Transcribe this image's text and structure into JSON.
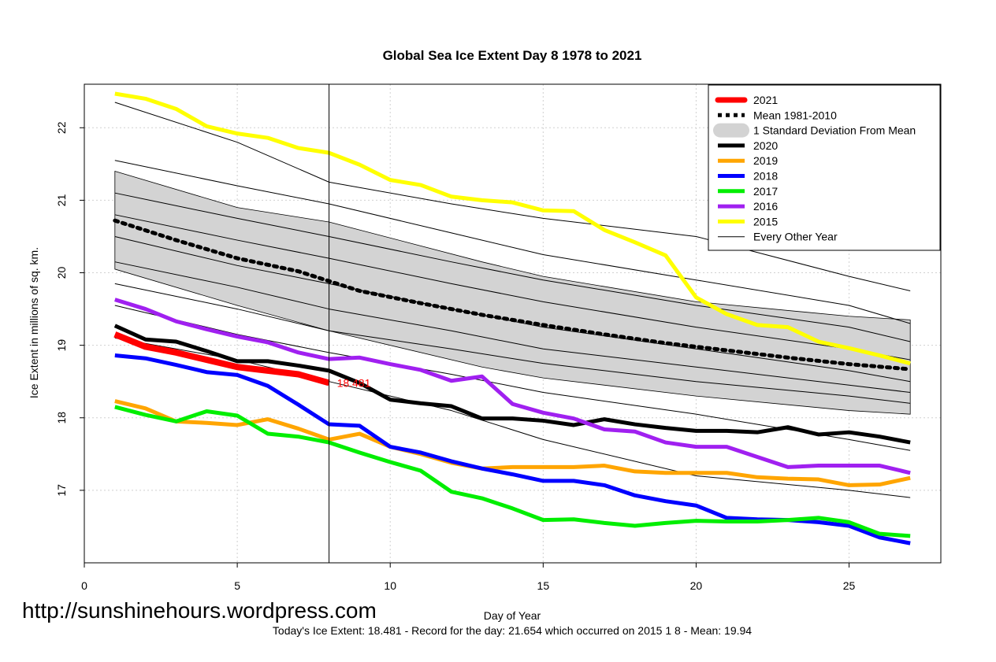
{
  "chart_data": {
    "type": "line",
    "title": "Global Sea Ice Extent Day 8 1978 to 2021",
    "xlabel": "Day of Year",
    "ylabel": "Ice Extent in millions of sq. km.",
    "xlim": [
      0,
      28
    ],
    "ylim": [
      16,
      22.6
    ],
    "xticks": [
      0,
      5,
      10,
      15,
      20,
      25
    ],
    "yticks": [
      17,
      18,
      19,
      20,
      21,
      22
    ],
    "grid": true,
    "legend_position": "top-right",
    "current_day": 8,
    "current_value_label": "18.481",
    "mean_band": {
      "name": "1 Standard Deviation From Mean",
      "x": [
        1,
        5,
        8,
        13,
        15,
        20,
        25,
        27
      ],
      "upper": [
        21.4,
        20.9,
        20.7,
        20.15,
        19.95,
        19.6,
        19.4,
        19.35
      ],
      "lower": [
        20.05,
        19.55,
        19.2,
        18.7,
        18.55,
        18.3,
        18.1,
        18.05
      ]
    },
    "series": [
      {
        "name": "2021",
        "color": "#ff0000",
        "width": 8,
        "x": [
          1,
          2,
          3,
          4,
          5,
          6,
          7,
          8
        ],
        "values": [
          19.15,
          18.98,
          18.9,
          18.8,
          18.7,
          18.65,
          18.6,
          18.481
        ]
      },
      {
        "name": "Mean 1981-2010",
        "color": "#000000",
        "width": 5,
        "dash": "dotted",
        "x": [
          1,
          3,
          5,
          7,
          9,
          11,
          13,
          15,
          17,
          19,
          21,
          23,
          25,
          27
        ],
        "values": [
          20.72,
          20.45,
          20.2,
          20.02,
          19.75,
          19.58,
          19.42,
          19.28,
          19.15,
          19.03,
          18.93,
          18.83,
          18.74,
          18.67
        ]
      },
      {
        "name": "2020",
        "color": "#000000",
        "width": 5,
        "x": [
          1,
          2,
          3,
          4,
          5,
          6,
          7,
          8,
          9,
          10,
          11,
          12,
          13,
          14,
          15,
          16,
          17,
          18,
          19,
          20,
          21,
          22,
          23,
          24,
          25,
          26,
          27
        ],
        "values": [
          19.27,
          19.08,
          19.05,
          18.92,
          18.78,
          18.78,
          18.72,
          18.65,
          18.48,
          18.25,
          18.2,
          18.16,
          17.99,
          17.99,
          17.96,
          17.9,
          17.98,
          17.91,
          17.86,
          17.82,
          17.82,
          17.8,
          17.87,
          17.77,
          17.8,
          17.74,
          17.66
        ]
      },
      {
        "name": "2019",
        "color": "#ffa500",
        "width": 5,
        "x": [
          1,
          2,
          3,
          4,
          5,
          6,
          7,
          8,
          9,
          10,
          11,
          12,
          13,
          14,
          15,
          16,
          17,
          18,
          19,
          20,
          21,
          22,
          23,
          24,
          25,
          26,
          27
        ],
        "values": [
          18.23,
          18.13,
          17.95,
          17.93,
          17.9,
          17.98,
          17.85,
          17.7,
          17.78,
          17.6,
          17.5,
          17.38,
          17.3,
          17.32,
          17.32,
          17.32,
          17.34,
          17.26,
          17.24,
          17.24,
          17.24,
          17.18,
          17.16,
          17.15,
          17.07,
          17.08,
          17.17
        ]
      },
      {
        "name": "2018",
        "color": "#0000ff",
        "width": 5,
        "x": [
          1,
          2,
          3,
          4,
          5,
          6,
          7,
          8,
          9,
          10,
          11,
          12,
          13,
          14,
          15,
          16,
          17,
          18,
          19,
          20,
          21,
          22,
          23,
          24,
          25,
          26,
          27
        ],
        "values": [
          18.86,
          18.82,
          18.73,
          18.63,
          18.59,
          18.44,
          18.18,
          17.91,
          17.89,
          17.6,
          17.52,
          17.4,
          17.3,
          17.22,
          17.13,
          17.13,
          17.07,
          16.93,
          16.85,
          16.79,
          16.62,
          16.6,
          16.59,
          16.56,
          16.51,
          16.35,
          16.27
        ]
      },
      {
        "name": "2017",
        "color": "#00ee00",
        "width": 5,
        "x": [
          1,
          2,
          3,
          4,
          5,
          6,
          7,
          8,
          9,
          10,
          11,
          12,
          13,
          14,
          15,
          16,
          17,
          18,
          19,
          20,
          21,
          22,
          23,
          24,
          25,
          26,
          27
        ],
        "values": [
          18.15,
          18.04,
          17.95,
          18.09,
          18.03,
          17.78,
          17.74,
          17.66,
          17.52,
          17.39,
          17.27,
          16.98,
          16.89,
          16.75,
          16.59,
          16.6,
          16.55,
          16.51,
          16.55,
          16.58,
          16.57,
          16.57,
          16.59,
          16.62,
          16.56,
          16.4,
          16.37
        ]
      },
      {
        "name": "2016",
        "color": "#a020f0",
        "width": 5,
        "x": [
          1,
          2,
          3,
          4,
          5,
          6,
          7,
          8,
          9,
          10,
          11,
          12,
          13,
          14,
          15,
          16,
          17,
          18,
          19,
          20,
          21,
          22,
          23,
          24,
          25,
          26,
          27
        ],
        "values": [
          19.63,
          19.5,
          19.33,
          19.22,
          19.12,
          19.04,
          18.9,
          18.81,
          18.83,
          18.74,
          18.66,
          18.51,
          18.57,
          18.19,
          18.07,
          17.99,
          17.84,
          17.81,
          17.66,
          17.6,
          17.6,
          17.46,
          17.32,
          17.34,
          17.34,
          17.34,
          17.24
        ]
      },
      {
        "name": "2015",
        "color": "#ffff00",
        "width": 5,
        "x": [
          1,
          2,
          3,
          4,
          5,
          6,
          7,
          8,
          9,
          10,
          11,
          12,
          13,
          14,
          15,
          16,
          17,
          18,
          19,
          20,
          21,
          22,
          23,
          24,
          25,
          26,
          27
        ],
        "values": [
          22.47,
          22.4,
          22.26,
          22.02,
          21.92,
          21.86,
          21.72,
          21.654,
          21.49,
          21.28,
          21.21,
          21.05,
          21.0,
          20.97,
          20.86,
          20.85,
          20.59,
          20.42,
          20.24,
          19.66,
          19.43,
          19.28,
          19.25,
          19.05,
          18.96,
          18.86,
          18.75
        ]
      },
      {
        "name": "Every Other Year",
        "color": "#000000",
        "width": 1,
        "x": [
          1,
          5,
          8,
          12,
          15,
          20,
          25,
          27
        ],
        "values": [
          22.35,
          21.8,
          21.25,
          20.95,
          20.75,
          20.5,
          19.95,
          19.75
        ]
      },
      {
        "name": "",
        "color": "#000000",
        "width": 1,
        "x": [
          1,
          5,
          8,
          12,
          15,
          20,
          25,
          27
        ],
        "values": [
          21.55,
          21.2,
          20.95,
          20.55,
          20.25,
          19.9,
          19.55,
          19.3
        ]
      },
      {
        "name": "",
        "color": "#000000",
        "width": 1,
        "x": [
          1,
          5,
          8,
          12,
          15,
          20,
          25,
          27
        ],
        "values": [
          21.1,
          20.75,
          20.5,
          20.15,
          19.9,
          19.55,
          19.25,
          19.05
        ]
      },
      {
        "name": "",
        "color": "#000000",
        "width": 1,
        "x": [
          1,
          5,
          8,
          12,
          15,
          20,
          25,
          27
        ],
        "values": [
          20.8,
          20.45,
          20.2,
          19.85,
          19.6,
          19.25,
          18.95,
          18.8
        ]
      },
      {
        "name": "",
        "color": "#000000",
        "width": 1,
        "x": [
          1,
          5,
          8,
          12,
          15,
          20,
          25,
          27
        ],
        "values": [
          20.5,
          20.1,
          19.85,
          19.5,
          19.25,
          18.95,
          18.65,
          18.5
        ]
      },
      {
        "name": "",
        "color": "#000000",
        "width": 1,
        "x": [
          1,
          5,
          8,
          12,
          15,
          20,
          25,
          27
        ],
        "values": [
          20.15,
          19.8,
          19.5,
          19.2,
          18.95,
          18.7,
          18.45,
          18.35
        ]
      },
      {
        "name": "",
        "color": "#000000",
        "width": 1,
        "x": [
          1,
          5,
          8,
          12,
          15,
          20,
          25,
          27
        ],
        "values": [
          19.85,
          19.5,
          19.2,
          18.95,
          18.75,
          18.5,
          18.3,
          18.2
        ]
      },
      {
        "name": "",
        "color": "#000000",
        "width": 1,
        "x": [
          1,
          5,
          8,
          12,
          15,
          20,
          25,
          27
        ],
        "values": [
          19.55,
          19.15,
          18.9,
          18.6,
          18.35,
          18.05,
          17.7,
          17.55
        ]
      },
      {
        "name": "",
        "color": "#000000",
        "width": 1,
        "x": [
          1,
          5,
          8,
          12,
          15,
          20,
          25,
          27
        ],
        "values": [
          19.1,
          18.8,
          18.5,
          18.1,
          17.7,
          17.2,
          17.0,
          16.9
        ]
      }
    ]
  },
  "legend": {
    "items": [
      {
        "label": "2021",
        "color": "#ff0000",
        "style": "thick"
      },
      {
        "label": "Mean 1981-2010",
        "color": "#000000",
        "style": "dotted"
      },
      {
        "label": "1 Standard Deviation From Mean",
        "color": "#d3d3d3",
        "style": "band"
      },
      {
        "label": "2020",
        "color": "#000000",
        "style": "solid"
      },
      {
        "label": "2019",
        "color": "#ffa500",
        "style": "solid"
      },
      {
        "label": "2018",
        "color": "#0000ff",
        "style": "solid"
      },
      {
        "label": "2017",
        "color": "#00ee00",
        "style": "solid"
      },
      {
        "label": "2016",
        "color": "#a020f0",
        "style": "solid"
      },
      {
        "label": "2015",
        "color": "#ffff00",
        "style": "solid"
      },
      {
        "label": "Every Other Year",
        "color": "#000000",
        "style": "thin"
      }
    ]
  },
  "source": "http://sunshinehours.wordpress.com",
  "caption": "Today's Ice Extent: 18.481  - Record for the day: 21.654 which occurred on 2015 1 8  - Mean: 19.94"
}
